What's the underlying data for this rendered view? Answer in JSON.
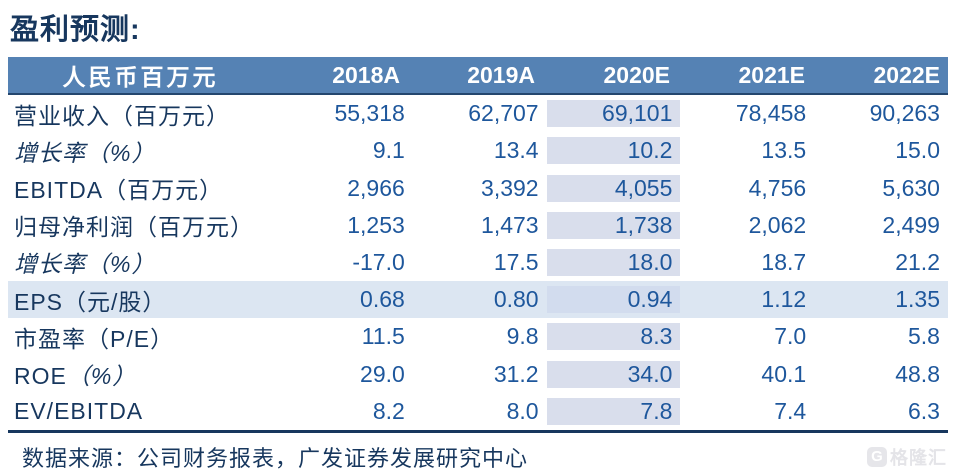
{
  "title": "盈利预测:",
  "table": {
    "header": {
      "label": "人民币百万元",
      "columns": [
        "2018A",
        "2019A",
        "2020E",
        "2021E",
        "2022E"
      ]
    },
    "rows": [
      {
        "label": "营业收入（百万元）",
        "values": [
          "55,318",
          "62,707",
          "69,101",
          "78,458",
          "90,263"
        ]
      },
      {
        "label": "增长率（%）",
        "values": [
          "9.1",
          "13.4",
          "10.2",
          "13.5",
          "15.0"
        ]
      },
      {
        "label": "EBITDA（百万元）",
        "values": [
          "2,966",
          "3,392",
          "4,055",
          "4,756",
          "5,630"
        ]
      },
      {
        "label": "归母净利润（百万元）",
        "values": [
          "1,253",
          "1,473",
          "1,738",
          "2,062",
          "2,499"
        ]
      },
      {
        "label": "增长率（%）",
        "values": [
          "-17.0",
          "17.5",
          "18.0",
          "18.7",
          "21.2"
        ]
      },
      {
        "label": "EPS（元/股）",
        "values": [
          "0.68",
          "0.80",
          "0.94",
          "1.12",
          "1.35"
        ]
      },
      {
        "label": "市盈率（P/E）",
        "values": [
          "11.5",
          "9.8",
          "8.3",
          "7.0",
          "5.8"
        ]
      },
      {
        "label_main": "ROE",
        "label_suffix": "（%）",
        "values": [
          "29.0",
          "31.2",
          "34.0",
          "40.1",
          "48.8"
        ]
      },
      {
        "label": "EV/EBITDA",
        "values": [
          "8.2",
          "8.0",
          "7.8",
          "7.4",
          "6.3"
        ]
      }
    ],
    "highlighted_column": "2020E",
    "highlighted_row": "EPS（元/股）"
  },
  "footer": {
    "source": "数据来源：公司财务报表，广发证券发展研究中心"
  },
  "watermark": {
    "icon": "G",
    "brand": "格隆汇"
  },
  "colors": {
    "header_bg": "#5582b4",
    "header_text": "#ffffff",
    "label_text": "#17375e",
    "number_text": "#1e579c",
    "column_highlight": "#d9deec",
    "row_highlight": "#dce6f2",
    "bottom_border": "#17375e",
    "watermark_gray": "#e4e4e8"
  }
}
